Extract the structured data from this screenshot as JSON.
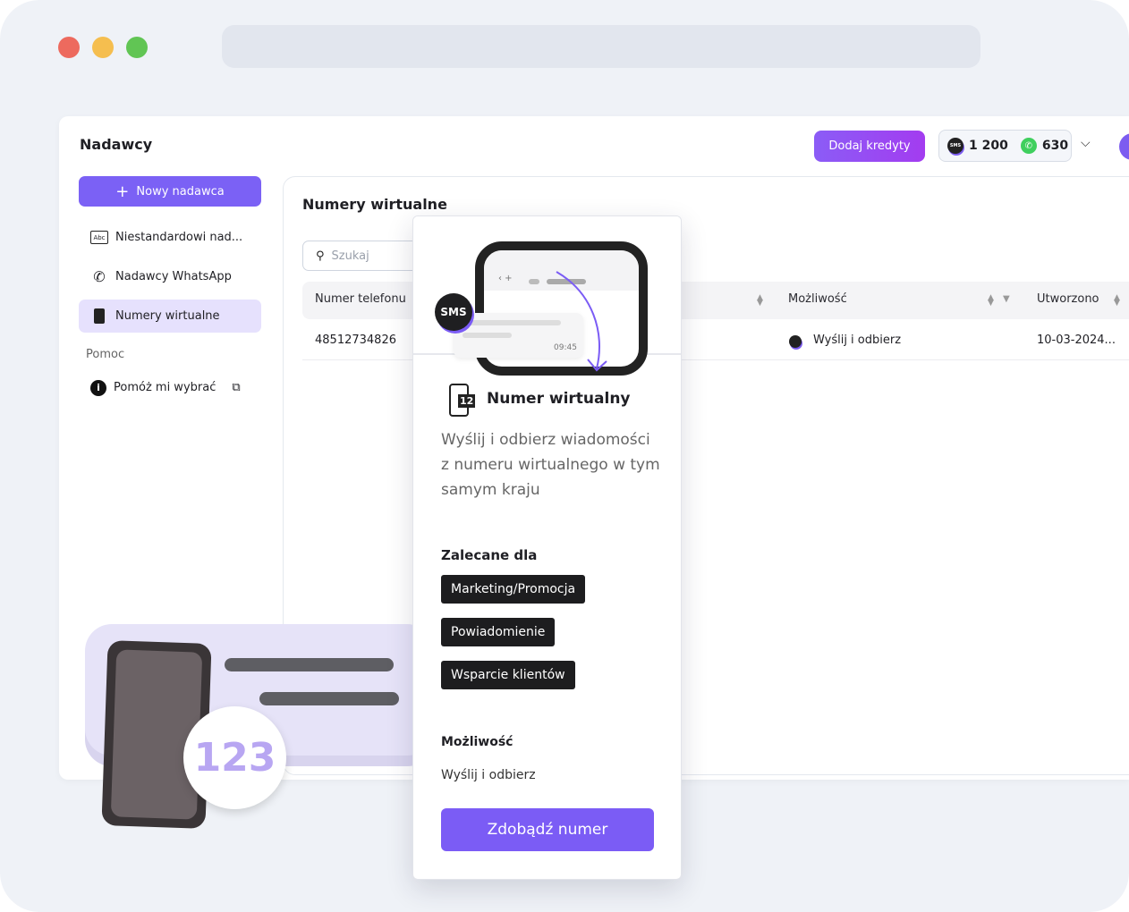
{
  "window": {
    "dots": [
      "#ed6a5e",
      "#f5be4f",
      "#61c554"
    ]
  },
  "header": {
    "title": "Nadawcy",
    "add_credits": "Dodaj kredyty",
    "sms_icon_text": "SMS",
    "sms_credits": "1 200",
    "whatsapp_credits": "630"
  },
  "sidebar": {
    "new_sender": "Nowy nadawca",
    "items": [
      {
        "label": "Niestandardowi nad...",
        "icon": "abc-icon",
        "icon_text": "Abc"
      },
      {
        "label": "Nadawcy WhatsApp",
        "icon": "whatsapp-id-icon"
      },
      {
        "label": "Numery wirtualne",
        "icon": "virtual-number-icon",
        "active": true
      }
    ],
    "help_section": "Pomoc",
    "help_item": "Pomóż mi wybrać"
  },
  "main": {
    "title": "Numery wirtualne",
    "search_placeholder": "Szukaj",
    "columns": [
      "Numer telefonu",
      "Możliwość",
      "Utworzono"
    ],
    "rows": [
      {
        "phone": "48512734826",
        "capability": "Wyślij i odbierz",
        "created": "10-03-2024..."
      }
    ]
  },
  "popup": {
    "illustration": {
      "badge": "SMS",
      "time": "09:45"
    },
    "icon_text": "12",
    "title": "Numer wirtualny",
    "description": "Wyślij i odbierz wiadomości z numeru wirtualnego w tym samym kraju",
    "recommended_label": "Zalecane dla",
    "tags": [
      "Marketing/Promocja",
      "Powiadomienie",
      "Wsparcie klientów"
    ],
    "capability_label": "Możliwość",
    "capability_value": "Wyślij i odbierz",
    "cta": "Zdobądź numer"
  },
  "decoration": {
    "badge_text": "123"
  },
  "colors": {
    "accent": "#7b5cf5",
    "active_bg": "#e6e1fd"
  }
}
